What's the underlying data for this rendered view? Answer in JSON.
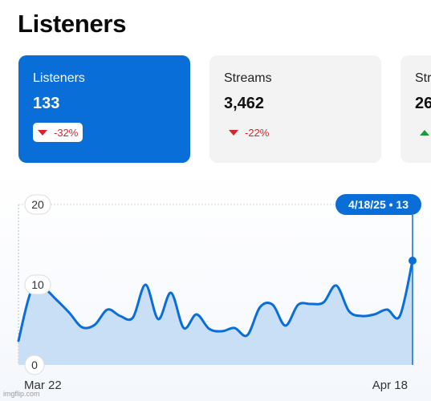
{
  "page": {
    "title": "Listeners"
  },
  "cards": [
    {
      "label": "Listeners",
      "value": "133",
      "change": "-32%",
      "direction": "down",
      "active": true
    },
    {
      "label": "Streams",
      "value": "3,462",
      "change": "-22%",
      "direction": "down",
      "active": false
    },
    {
      "label": "Str",
      "value": "26",
      "change": "",
      "direction": "up",
      "active": false
    }
  ],
  "tooltip": {
    "text": "4/18/25 • 13"
  },
  "watermark": "imgflip.com",
  "colors": {
    "accent": "#0a6ed8",
    "fill": "#c9dff6",
    "down": "#d8232a",
    "up": "#1e9a3d"
  },
  "chart_data": {
    "type": "area",
    "title": "",
    "xlabel": "",
    "ylabel": "",
    "x_tick_labels": [
      "Mar 22",
      "Apr 18"
    ],
    "y_ticks": [
      0,
      10,
      20
    ],
    "ylim": [
      0,
      20
    ],
    "grid": false,
    "series": [
      {
        "values": [
          3,
          9.2,
          9.5,
          8.1,
          6.5,
          4.7,
          5,
          6.9,
          6.1,
          5.9,
          10.0,
          5.7,
          9.0,
          4.6,
          6.3,
          4.5,
          4.2,
          4.6,
          3.7,
          7.2,
          7.5,
          4.9,
          7.5,
          7.6,
          7.8,
          9.9,
          6.7,
          6.1,
          6.3,
          6.9,
          6.1,
          13
        ]
      }
    ]
  }
}
